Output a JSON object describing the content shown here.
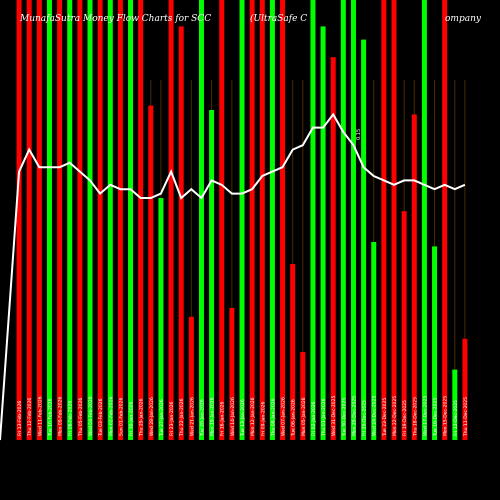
{
  "header": {
    "title": "MunafaSutra Money Flow Charts for SCC",
    "company": "(UltraSafe C",
    "company_tail": "ompany",
    "top_label": "0.15"
  },
  "chart_data": {
    "type": "bar",
    "title": "MunafaSutra Money Flow Charts for SCC",
    "ylim": [
      0,
      100
    ],
    "bar_colors": {
      "up": "#00ff00",
      "down": "#ff0000"
    },
    "line_color": "#ffffff",
    "background": "#000000",
    "categories": [
      "Fri 13-Feb-2026",
      "Thu 12-Feb-2026",
      "Wed 11-Feb-2026",
      "Tue 10-Feb-2026",
      "Mon 09-Feb-2026",
      "Fri 06-Feb-2026",
      "Thu 05-Feb-2026",
      "Wed 04-Feb-2026",
      "Tue 03-Feb-2026",
      "Mon 02-Feb-2026",
      "Sun 01-Feb-2026",
      "Fri 30-Jan-2026",
      "Thu 29-Jan-2026",
      "Wed 28-Jan-2026",
      "Tue 27-Jan-2026",
      "Fri 23-Jan-2026",
      "Thu 22-Jan-2026",
      "Wed 21-Jan-2026",
      "Tue 20-Jan-2026",
      "Mon 19-Jan-2026",
      "Fri 16-Jan-2026",
      "Wed 14-Jan-2026",
      "Tue 13-Jan-2026",
      "Mon 12-Jan-2026",
      "Fri 09-Jan-2026",
      "Thu 08-Jan-2026",
      "Wed 07-Jan-2026",
      "Tue 06-Jan-2026",
      "Mon 05-Jan-2026",
      "Fri 02-Jan-2026",
      "Thu 01-Jan-2026",
      "Wed 31-Dec-2025",
      "Tue 30-Dec-2025",
      "Mon 29-Dec-2025",
      "Fri 26-Dec-2025",
      "Wed 24-Dec-2025",
      "Tue 23-Dec-2025",
      "Mon 22-Dec-2025",
      "Fri 19-Dec-2025",
      "Thu 18-Dec-2025",
      "Wed 17-Dec-2025",
      "Tue 16-Dec-2025",
      "Mon 15-Dec-2025",
      "Fri 12-Dec-2025",
      "Thu 11-Dec-2025"
    ],
    "series": [
      {
        "values": [
          100,
          100,
          100,
          100,
          100,
          100,
          100,
          100,
          100,
          100,
          100,
          100,
          100,
          76,
          55,
          100,
          94,
          28,
          100,
          75,
          100,
          30,
          100,
          100,
          100,
          100,
          100,
          40,
          20,
          100,
          94,
          87,
          100,
          100,
          91,
          45,
          100,
          100,
          52,
          74,
          100,
          44,
          100,
          16,
          23
        ],
        "colors": [
          "down",
          "down",
          "down",
          "up",
          "down",
          "up",
          "down",
          "up",
          "down",
          "up",
          "down",
          "up",
          "down",
          "down",
          "up",
          "down",
          "down",
          "down",
          "up",
          "up",
          "down",
          "down",
          "up",
          "down",
          "down",
          "up",
          "down",
          "down",
          "down",
          "up",
          "up",
          "down",
          "up",
          "up",
          "up",
          "up",
          "down",
          "down",
          "down",
          "down",
          "up",
          "up",
          "down",
          "up",
          "down"
        ]
      },
      {
        "values": [
          61,
          66,
          62,
          62,
          62,
          63,
          61,
          59,
          56,
          58,
          57,
          57,
          55,
          55,
          56,
          61,
          55,
          57,
          55,
          59,
          58,
          56,
          56,
          57,
          60,
          61,
          62,
          66,
          67,
          71,
          71,
          74,
          70,
          67,
          62,
          60,
          59,
          58,
          59,
          59,
          58,
          57,
          58,
          57,
          58
        ]
      }
    ],
    "volume_markers": [
      "0.15"
    ]
  }
}
